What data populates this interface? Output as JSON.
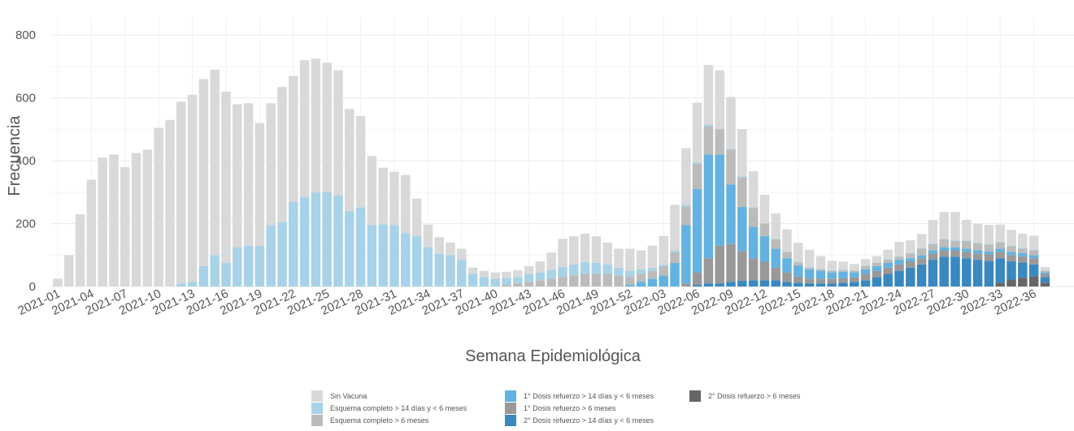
{
  "chart_data": {
    "type": "bar",
    "stacked": true,
    "title": "",
    "xlabel": "Semana Epidemiológica",
    "ylabel": "Frecuencia",
    "ylim": [
      0,
      860
    ],
    "yticks": [
      0,
      200,
      400,
      600,
      800
    ],
    "grid": true,
    "legend_position": "bottom",
    "categories": [
      "2021-01",
      "2021-02",
      "2021-03",
      "2021-04",
      "2021-05",
      "2021-06",
      "2021-07",
      "2021-08",
      "2021-09",
      "2021-10",
      "2021-11",
      "2021-12",
      "2021-13",
      "2021-14",
      "2021-15",
      "2021-16",
      "2021-17",
      "2021-18",
      "2021-19",
      "2021-20",
      "2021-21",
      "2021-22",
      "2021-23",
      "2021-24",
      "2021-25",
      "2021-26",
      "2021-27",
      "2021-28",
      "2021-29",
      "2021-30",
      "2021-31",
      "2021-32",
      "2021-33",
      "2021-34",
      "2021-35",
      "2021-36",
      "2021-37",
      "2021-38",
      "2021-39",
      "2021-40",
      "2021-41",
      "2021-42",
      "2021-43",
      "2021-44",
      "2021-45",
      "2021-46",
      "2021-47",
      "2021-48",
      "2021-49",
      "2021-50",
      "2021-51",
      "2021-52",
      "2022-01",
      "2022-02",
      "2022-03",
      "2022-04",
      "2022-05",
      "2022-06",
      "2022-07",
      "2022-08",
      "2022-09",
      "2022-10",
      "2022-11",
      "2022-12",
      "2022-13",
      "2022-14",
      "2022-15",
      "2022-16",
      "2022-17",
      "2022-18",
      "2022-19",
      "2022-20",
      "2022-21",
      "2022-22",
      "2022-23",
      "2022-24",
      "2022-25",
      "2022-26",
      "2022-27",
      "2022-28",
      "2022-29",
      "2022-30",
      "2022-31",
      "2022-32",
      "2022-33",
      "2022-34",
      "2022-35",
      "2022-36",
      "2022-37"
    ],
    "tick_labels": [
      "2021-01",
      "2021-04",
      "2021-07",
      "2021-10",
      "2021-13",
      "2021-16",
      "2021-19",
      "2021-22",
      "2021-25",
      "2021-28",
      "2021-31",
      "2021-34",
      "2021-37",
      "2021-40",
      "2021-43",
      "2021-46",
      "2021-49",
      "2021-52",
      "2022-03",
      "2022-06",
      "2022-09",
      "2022-12",
      "2022-15",
      "2022-18",
      "2022-21",
      "2022-24",
      "2022-27",
      "2022-30",
      "2022-33",
      "2022-36"
    ],
    "series": [
      {
        "name": "2° Dosis refuerzo > 6 meses",
        "color": "#666666",
        "values": [
          0,
          0,
          0,
          0,
          0,
          0,
          0,
          0,
          0,
          0,
          0,
          0,
          0,
          0,
          0,
          0,
          0,
          0,
          0,
          0,
          0,
          0,
          0,
          0,
          0,
          0,
          0,
          0,
          0,
          0,
          0,
          0,
          0,
          0,
          0,
          0,
          0,
          0,
          0,
          0,
          0,
          0,
          0,
          0,
          0,
          0,
          0,
          0,
          0,
          0,
          0,
          0,
          0,
          0,
          0,
          0,
          0,
          0,
          0,
          0,
          0,
          0,
          0,
          0,
          0,
          0,
          0,
          0,
          0,
          0,
          0,
          0,
          0,
          0,
          0,
          0,
          0,
          0,
          0,
          0,
          0,
          0,
          0,
          0,
          12,
          22,
          28,
          32,
          12
        ]
      },
      {
        "name": "2° Dosis refuerzo > 14 días y < 6 meses",
        "color": "#3a88c0",
        "values": [
          0,
          0,
          0,
          0,
          0,
          0,
          0,
          0,
          0,
          0,
          0,
          0,
          0,
          0,
          0,
          0,
          0,
          0,
          0,
          0,
          0,
          0,
          0,
          0,
          0,
          0,
          0,
          0,
          0,
          0,
          0,
          0,
          0,
          0,
          0,
          0,
          0,
          0,
          0,
          0,
          0,
          0,
          0,
          0,
          0,
          0,
          0,
          0,
          0,
          0,
          0,
          0,
          0,
          0,
          0,
          0,
          0,
          5,
          10,
          10,
          15,
          18,
          20,
          20,
          20,
          15,
          12,
          10,
          10,
          10,
          12,
          15,
          20,
          30,
          40,
          50,
          60,
          70,
          85,
          95,
          95,
          90,
          85,
          82,
          78,
          58,
          48,
          38,
          18
        ]
      },
      {
        "name": "1° Dosis refuerzo > 6 meses",
        "color": "#999999",
        "values": [
          0,
          0,
          0,
          0,
          0,
          0,
          0,
          0,
          0,
          0,
          0,
          0,
          0,
          0,
          0,
          0,
          0,
          0,
          0,
          0,
          0,
          0,
          0,
          0,
          0,
          0,
          0,
          0,
          0,
          0,
          0,
          0,
          0,
          0,
          0,
          0,
          0,
          0,
          0,
          0,
          0,
          0,
          0,
          0,
          0,
          0,
          0,
          0,
          0,
          0,
          0,
          0,
          0,
          0,
          0,
          0,
          10,
          40,
          80,
          120,
          120,
          95,
          70,
          60,
          40,
          30,
          20,
          15,
          15,
          15,
          15,
          15,
          20,
          20,
          20,
          20,
          20,
          20,
          20,
          20,
          20,
          20,
          20,
          20,
          20,
          20,
          20,
          20,
          10
        ]
      },
      {
        "name": "1° Dosis refuerzo > 14 días y < 6 meses",
        "color": "#63b2e1",
        "values": [
          0,
          0,
          0,
          0,
          0,
          0,
          0,
          0,
          0,
          0,
          0,
          0,
          0,
          0,
          0,
          0,
          0,
          0,
          0,
          0,
          0,
          0,
          0,
          0,
          0,
          0,
          0,
          0,
          0,
          0,
          0,
          0,
          0,
          0,
          0,
          0,
          0,
          0,
          0,
          0,
          0,
          0,
          0,
          0,
          0,
          0,
          0,
          0,
          0,
          0,
          0,
          5,
          15,
          25,
          35,
          75,
          185,
          265,
          330,
          290,
          190,
          140,
          100,
          80,
          60,
          45,
          35,
          30,
          25,
          20,
          20,
          15,
          15,
          15,
          15,
          15,
          10,
          10,
          10,
          10,
          10,
          10,
          10,
          10,
          10,
          10,
          10,
          10,
          5
        ]
      },
      {
        "name": "Esquema completo > 6 meses",
        "color": "#bbbbbb",
        "values": [
          0,
          0,
          0,
          0,
          0,
          0,
          0,
          0,
          0,
          0,
          0,
          0,
          0,
          0,
          0,
          0,
          0,
          0,
          0,
          0,
          0,
          0,
          0,
          0,
          0,
          0,
          0,
          0,
          0,
          0,
          0,
          0,
          0,
          0,
          0,
          0,
          0,
          0,
          0,
          0,
          5,
          10,
          15,
          20,
          25,
          30,
          35,
          40,
          40,
          40,
          35,
          25,
          25,
          25,
          30,
          35,
          60,
          80,
          90,
          80,
          110,
          95,
          60,
          40,
          30,
          20,
          10,
          5,
          5,
          5,
          5,
          5,
          10,
          10,
          10,
          10,
          15,
          20,
          20,
          25,
          20,
          25,
          22,
          22,
          20,
          18,
          15,
          15,
          5
        ]
      },
      {
        "name": "Esquema completo > 14 días y < 6 meses",
        "color": "#a8d2e8",
        "values": [
          0,
          0,
          0,
          0,
          0,
          0,
          0,
          0,
          0,
          0,
          0,
          10,
          15,
          65,
          100,
          75,
          125,
          130,
          130,
          195,
          205,
          270,
          285,
          300,
          300,
          290,
          240,
          252,
          195,
          198,
          195,
          170,
          160,
          125,
          105,
          100,
          85,
          40,
          30,
          25,
          22,
          20,
          25,
          25,
          28,
          32,
          35,
          38,
          35,
          30,
          25,
          20,
          15,
          10,
          5,
          5,
          5,
          5,
          5,
          3,
          3,
          3,
          2,
          2,
          2,
          2,
          2,
          2,
          2,
          2,
          2,
          2,
          2,
          2,
          2,
          2,
          2,
          2,
          2,
          2,
          2,
          2,
          2,
          2,
          2,
          2,
          2,
          2,
          2
        ]
      },
      {
        "name": "Sin Vacuna",
        "color": "#d9d9d9",
        "values": [
          25,
          100,
          230,
          340,
          410,
          420,
          380,
          425,
          435,
          505,
          530,
          578,
          595,
          595,
          590,
          545,
          455,
          453,
          390,
          388,
          430,
          400,
          435,
          425,
          412,
          398,
          325,
          290,
          220,
          180,
          170,
          185,
          120,
          72,
          52,
          40,
          35,
          20,
          20,
          20,
          20,
          22,
          25,
          35,
          55,
          90,
          90,
          90,
          85,
          70,
          60,
          70,
          60,
          70,
          90,
          145,
          180,
          190,
          190,
          185,
          165,
          150,
          115,
          90,
          80,
          70,
          60,
          55,
          40,
          30,
          25,
          20,
          20,
          20,
          30,
          45,
          40,
          45,
          75,
          85,
          90,
          65,
          60,
          60,
          55,
          50,
          45,
          45,
          10
        ]
      }
    ]
  }
}
